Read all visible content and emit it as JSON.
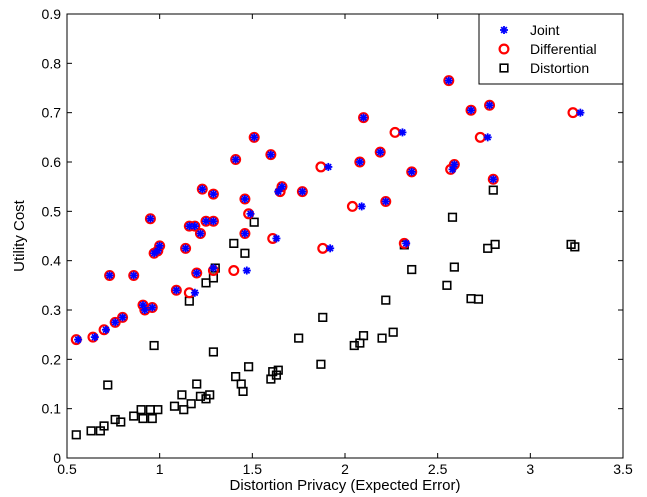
{
  "chart_data": {
    "type": "scatter",
    "title": "",
    "xlabel": "Distortion Privacy (Expected Error)",
    "ylabel": "Utility Cost",
    "xlim": [
      0.5,
      3.5
    ],
    "ylim": [
      0,
      0.9
    ],
    "xticks": [
      "0.5",
      "1",
      "1.5",
      "2",
      "2.5",
      "3",
      "3.5"
    ],
    "yticks": [
      "0",
      "0.1",
      "0.2",
      "0.3",
      "0.4",
      "0.5",
      "0.6",
      "0.7",
      "0.8",
      "0.9"
    ],
    "grid": false,
    "legend_position": "top-right",
    "series": [
      {
        "name": "Joint",
        "color": "#0000ff",
        "marker": "asterisk",
        "points": [
          [
            0.56,
            0.24
          ],
          [
            0.65,
            0.245
          ],
          [
            0.71,
            0.26
          ],
          [
            0.73,
            0.37
          ],
          [
            0.76,
            0.275
          ],
          [
            0.8,
            0.285
          ],
          [
            0.86,
            0.37
          ],
          [
            0.91,
            0.31
          ],
          [
            0.92,
            0.3
          ],
          [
            0.95,
            0.485
          ],
          [
            0.96,
            0.305
          ],
          [
            0.97,
            0.415
          ],
          [
            0.99,
            0.42
          ],
          [
            1.0,
            0.43
          ],
          [
            1.09,
            0.34
          ],
          [
            1.14,
            0.425
          ],
          [
            1.16,
            0.47
          ],
          [
            1.19,
            0.47
          ],
          [
            1.19,
            0.335
          ],
          [
            1.2,
            0.375
          ],
          [
            1.22,
            0.455
          ],
          [
            1.23,
            0.545
          ],
          [
            1.25,
            0.48
          ],
          [
            1.29,
            0.48
          ],
          [
            1.29,
            0.385
          ],
          [
            1.29,
            0.535
          ],
          [
            1.41,
            0.605
          ],
          [
            1.46,
            0.525
          ],
          [
            1.46,
            0.455
          ],
          [
            1.47,
            0.38
          ],
          [
            1.49,
            0.495
          ],
          [
            1.51,
            0.65
          ],
          [
            1.6,
            0.615
          ],
          [
            1.63,
            0.445
          ],
          [
            1.64,
            0.54
          ],
          [
            1.66,
            0.55
          ],
          [
            1.77,
            0.54
          ],
          [
            1.91,
            0.59
          ],
          [
            1.92,
            0.425
          ],
          [
            2.08,
            0.6
          ],
          [
            2.09,
            0.51
          ],
          [
            2.1,
            0.69
          ],
          [
            2.19,
            0.62
          ],
          [
            2.22,
            0.52
          ],
          [
            2.31,
            0.66
          ],
          [
            2.33,
            0.435
          ],
          [
            2.36,
            0.58
          ],
          [
            2.56,
            0.765
          ],
          [
            2.58,
            0.585
          ],
          [
            2.59,
            0.595
          ],
          [
            2.68,
            0.705
          ],
          [
            2.77,
            0.65
          ],
          [
            2.78,
            0.715
          ],
          [
            2.8,
            0.565
          ],
          [
            3.27,
            0.7
          ]
        ]
      },
      {
        "name": "Differential",
        "color": "#ff0000",
        "marker": "circle",
        "points": [
          [
            0.55,
            0.24
          ],
          [
            0.64,
            0.245
          ],
          [
            0.7,
            0.26
          ],
          [
            0.73,
            0.37
          ],
          [
            0.76,
            0.275
          ],
          [
            0.8,
            0.285
          ],
          [
            0.86,
            0.37
          ],
          [
            0.91,
            0.31
          ],
          [
            0.92,
            0.3
          ],
          [
            0.95,
            0.485
          ],
          [
            0.96,
            0.305
          ],
          [
            0.97,
            0.415
          ],
          [
            0.99,
            0.42
          ],
          [
            1.0,
            0.43
          ],
          [
            1.09,
            0.34
          ],
          [
            1.14,
            0.425
          ],
          [
            1.16,
            0.335
          ],
          [
            1.16,
            0.47
          ],
          [
            1.19,
            0.47
          ],
          [
            1.2,
            0.375
          ],
          [
            1.22,
            0.455
          ],
          [
            1.23,
            0.545
          ],
          [
            1.25,
            0.48
          ],
          [
            1.29,
            0.48
          ],
          [
            1.29,
            0.38
          ],
          [
            1.29,
            0.535
          ],
          [
            1.4,
            0.38
          ],
          [
            1.41,
            0.605
          ],
          [
            1.46,
            0.525
          ],
          [
            1.46,
            0.455
          ],
          [
            1.48,
            0.495
          ],
          [
            1.51,
            0.65
          ],
          [
            1.6,
            0.615
          ],
          [
            1.61,
            0.445
          ],
          [
            1.65,
            0.54
          ],
          [
            1.66,
            0.55
          ],
          [
            1.77,
            0.54
          ],
          [
            1.87,
            0.59
          ],
          [
            1.88,
            0.425
          ],
          [
            2.04,
            0.51
          ],
          [
            2.08,
            0.6
          ],
          [
            2.1,
            0.69
          ],
          [
            2.19,
            0.62
          ],
          [
            2.22,
            0.52
          ],
          [
            2.27,
            0.66
          ],
          [
            2.32,
            0.435
          ],
          [
            2.36,
            0.58
          ],
          [
            2.56,
            0.765
          ],
          [
            2.57,
            0.585
          ],
          [
            2.59,
            0.595
          ],
          [
            2.68,
            0.705
          ],
          [
            2.73,
            0.65
          ],
          [
            2.78,
            0.715
          ],
          [
            2.8,
            0.565
          ],
          [
            3.23,
            0.7
          ]
        ]
      },
      {
        "name": "Distortion",
        "color": "#000000",
        "marker": "square",
        "points": [
          [
            0.55,
            0.047
          ],
          [
            0.63,
            0.055
          ],
          [
            0.68,
            0.055
          ],
          [
            0.7,
            0.065
          ],
          [
            0.72,
            0.148
          ],
          [
            0.76,
            0.078
          ],
          [
            0.79,
            0.073
          ],
          [
            0.86,
            0.085
          ],
          [
            0.9,
            0.098
          ],
          [
            0.91,
            0.08
          ],
          [
            0.95,
            0.098
          ],
          [
            0.96,
            0.08
          ],
          [
            0.97,
            0.228
          ],
          [
            0.99,
            0.098
          ],
          [
            1.08,
            0.105
          ],
          [
            1.12,
            0.128
          ],
          [
            1.13,
            0.098
          ],
          [
            1.16,
            0.318
          ],
          [
            1.17,
            0.11
          ],
          [
            1.2,
            0.15
          ],
          [
            1.22,
            0.125
          ],
          [
            1.25,
            0.355
          ],
          [
            1.25,
            0.12
          ],
          [
            1.27,
            0.128
          ],
          [
            1.29,
            0.215
          ],
          [
            1.29,
            0.365
          ],
          [
            1.3,
            0.385
          ],
          [
            1.4,
            0.435
          ],
          [
            1.41,
            0.165
          ],
          [
            1.44,
            0.15
          ],
          [
            1.45,
            0.135
          ],
          [
            1.46,
            0.415
          ],
          [
            1.48,
            0.185
          ],
          [
            1.51,
            0.478
          ],
          [
            1.6,
            0.16
          ],
          [
            1.61,
            0.175
          ],
          [
            1.63,
            0.168
          ],
          [
            1.64,
            0.178
          ],
          [
            1.75,
            0.243
          ],
          [
            1.87,
            0.19
          ],
          [
            1.88,
            0.285
          ],
          [
            2.05,
            0.228
          ],
          [
            2.08,
            0.233
          ],
          [
            2.1,
            0.248
          ],
          [
            2.2,
            0.243
          ],
          [
            2.22,
            0.32
          ],
          [
            2.26,
            0.255
          ],
          [
            2.32,
            0.432
          ],
          [
            2.36,
            0.382
          ],
          [
            2.55,
            0.35
          ],
          [
            2.58,
            0.488
          ],
          [
            2.59,
            0.387
          ],
          [
            2.68,
            0.323
          ],
          [
            2.72,
            0.322
          ],
          [
            2.77,
            0.425
          ],
          [
            2.8,
            0.543
          ],
          [
            2.81,
            0.433
          ],
          [
            3.22,
            0.433
          ],
          [
            3.24,
            0.428
          ]
        ]
      }
    ]
  }
}
